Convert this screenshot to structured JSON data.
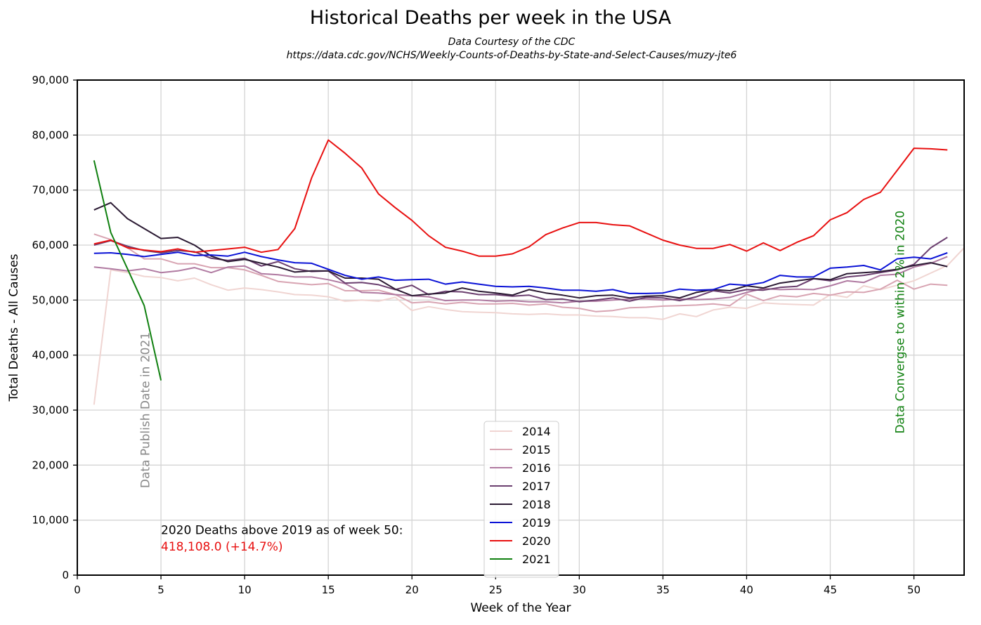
{
  "chart_data": {
    "type": "line",
    "title": "Historical Deaths per week in the USA",
    "subtitle_lines": [
      "Data Courtesy of the CDC",
      "https://data.cdc.gov/NCHS/Weekly-Counts-of-Deaths-by-State-and-Select-Causes/muzy-jte6"
    ],
    "xlabel": "Week of the Year",
    "ylabel": "Total Deaths - All Causes",
    "xlim": [
      0,
      53
    ],
    "ylim": [
      0,
      90000
    ],
    "x_ticks": [
      0,
      5,
      10,
      15,
      20,
      25,
      30,
      35,
      40,
      45,
      50
    ],
    "y_ticks": [
      0,
      10000,
      20000,
      30000,
      40000,
      50000,
      60000,
      70000,
      80000,
      90000
    ],
    "y_tick_labels": [
      "0",
      "10,000",
      "20,000",
      "30,000",
      "40,000",
      "50,000",
      "60,000",
      "70,000",
      "80,000",
      "90,000"
    ],
    "grid": true,
    "legend_position": "bottom-center",
    "series": [
      {
        "name": "2014",
        "color": "#f0d5d2",
        "x_start": 1,
        "values": [
          31000,
          55500,
          55000,
          54300,
          54100,
          53500,
          54000,
          52800,
          51800,
          52200,
          51900,
          51500,
          51000,
          50900,
          50600,
          49800,
          50000,
          49800,
          50500,
          48100,
          48800,
          48300,
          47900,
          47800,
          47700,
          47500,
          47400,
          47500,
          47300,
          47300,
          47100,
          47000,
          46800,
          46800,
          46500,
          47500,
          47000,
          48200,
          48700,
          48500,
          49500,
          49300,
          49200,
          49100,
          51000,
          50500,
          52600,
          51900,
          52700,
          53500,
          54900,
          56300,
          59500
        ]
      },
      {
        "name": "2015",
        "color": "#d8a4b2",
        "x_start": 1,
        "values": [
          62000,
          61000,
          59500,
          57500,
          57500,
          56600,
          56600,
          55900,
          55900,
          55500,
          54500,
          53400,
          53100,
          52800,
          53000,
          51700,
          51700,
          51800,
          51000,
          49500,
          49700,
          49300,
          49600,
          49300,
          49300,
          49400,
          49100,
          49300,
          48700,
          48500,
          47900,
          48100,
          48600,
          48700,
          48900,
          49000,
          49100,
          49300,
          49000,
          51100,
          49900,
          50800,
          50600,
          51200,
          50900,
          51500,
          51400,
          52000,
          53600,
          52000,
          52900,
          52700
        ]
      },
      {
        "name": "2016",
        "color": "#b07aa1",
        "x_start": 1,
        "values": [
          56000,
          55700,
          55300,
          55700,
          55000,
          55300,
          55900,
          55000,
          56000,
          56200,
          54800,
          54600,
          54200,
          54200,
          53700,
          53000,
          51400,
          51300,
          51000,
          50800,
          50600,
          49900,
          50000,
          50000,
          49800,
          49900,
          49700,
          49700,
          49500,
          49800,
          49800,
          50000,
          50200,
          50200,
          50000,
          50200,
          50100,
          50200,
          50500,
          51400,
          52100,
          51900,
          52000,
          51900,
          52600,
          53500,
          53200,
          54500,
          54700,
          56000,
          56700,
          57900
        ]
      },
      {
        "name": "2017",
        "color": "#6b3f6f",
        "x_start": 1,
        "values": [
          60000,
          60800,
          59800,
          59000,
          58600,
          59000,
          58800,
          57600,
          57200,
          57600,
          56200,
          57000,
          55700,
          55200,
          55300,
          53100,
          53200,
          52800,
          51900,
          52700,
          51000,
          51600,
          51500,
          51000,
          51000,
          50700,
          50900,
          50100,
          50200,
          49700,
          50000,
          50400,
          49800,
          50500,
          50400,
          49900,
          50600,
          51700,
          51300,
          51900,
          51800,
          52300,
          52500,
          53900,
          53500,
          54200,
          54500,
          55000,
          55500,
          56500,
          59500,
          61400
        ]
      },
      {
        "name": "2018",
        "color": "#2b1a33",
        "x_start": 1,
        "values": [
          66400,
          67700,
          64800,
          63000,
          61200,
          61400,
          60000,
          58000,
          57000,
          57400,
          56700,
          56000,
          55100,
          55300,
          55300,
          54000,
          54000,
          53800,
          52000,
          50800,
          51100,
          51300,
          52200,
          51600,
          51300,
          50900,
          51900,
          51300,
          50900,
          50400,
          50800,
          50900,
          50400,
          50700,
          50800,
          50400,
          51400,
          51900,
          51700,
          52600,
          52200,
          53100,
          53500,
          53900,
          53700,
          54800,
          55000,
          55200,
          55600,
          56300,
          56800,
          56100
        ]
      },
      {
        "name": "2019",
        "color": "#0a12d6",
        "x_start": 1,
        "values": [
          58500,
          58600,
          58300,
          57900,
          58300,
          58700,
          58100,
          58200,
          58000,
          58700,
          57900,
          57300,
          56800,
          56700,
          55600,
          54500,
          53800,
          54200,
          53600,
          53700,
          53800,
          52900,
          53300,
          52900,
          52500,
          52400,
          52500,
          52200,
          51800,
          51800,
          51600,
          51900,
          51200,
          51200,
          51300,
          52000,
          51800,
          51900,
          52900,
          52700,
          53200,
          54500,
          54200,
          54200,
          55800,
          56000,
          56300,
          55500,
          57500,
          57800,
          57500,
          58600
        ]
      },
      {
        "name": "2020",
        "color": "#e81010",
        "x_start": 1,
        "values": [
          60200,
          60900,
          59500,
          59100,
          58800,
          59300,
          58700,
          59000,
          59300,
          59600,
          58700,
          59200,
          63000,
          72200,
          79100,
          76700,
          74000,
          69300,
          66800,
          64500,
          61700,
          59600,
          58900,
          58000,
          58000,
          58400,
          59700,
          61900,
          63100,
          64100,
          64100,
          63700,
          63500,
          62200,
          60900,
          60000,
          59400,
          59400,
          60100,
          58900,
          60400,
          59000,
          60500,
          61700,
          64600,
          65900,
          68300,
          69600,
          73600,
          77600,
          77500,
          77300
        ]
      },
      {
        "name": "2021",
        "color": "#108010",
        "x_start": 1,
        "values": [
          75400,
          62300,
          55700,
          49000,
          35400
        ]
      }
    ],
    "annotations": [
      {
        "text": "Data Publish Date in 2021",
        "x": 4.3,
        "y": 30000,
        "rotation": -90,
        "color": "#888888"
      },
      {
        "text": "Data Convergse to within 2% in 2020",
        "x": 49.4,
        "y": 46000,
        "rotation": -90,
        "color": "#108010"
      },
      {
        "text": "2020 Deaths above 2019 as of week 50:",
        "x": 5,
        "y": 7500,
        "color": "#000000"
      },
      {
        "text": "418,108.0  (+14.7%)",
        "x": 5,
        "y": 4500,
        "color": "#e81010"
      }
    ]
  }
}
